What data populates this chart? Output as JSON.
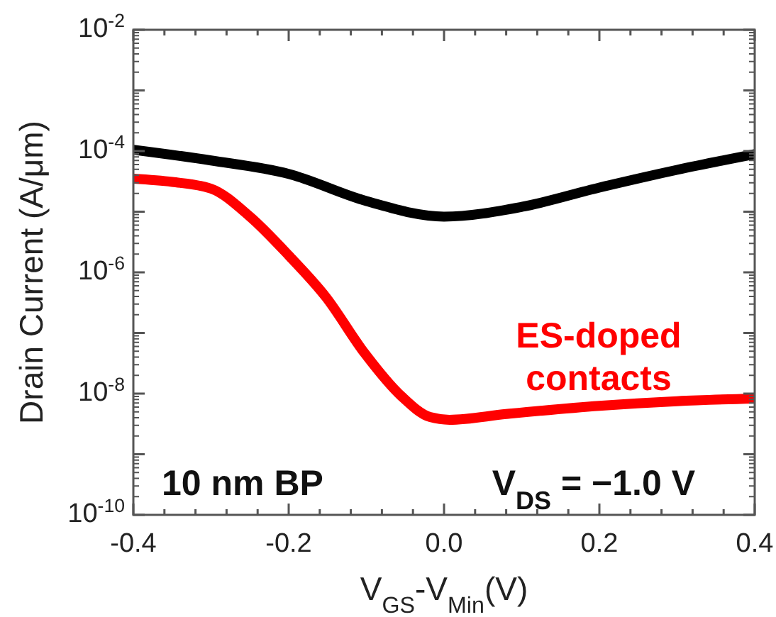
{
  "chart_data": {
    "type": "line",
    "xlabel": "V$_{GS}$-V$_{Min}$(V)",
    "ylabel": "Drain Current (A/μm)",
    "log": "y",
    "xlim": [
      -0.4,
      0.4
    ],
    "ylim": [
      1e-10,
      0.01
    ],
    "xticks": [
      -0.4,
      {
        "value": -0.36,
        "label": null
      },
      {
        "value": -0.32,
        "label": null
      },
      {
        "value": -0.28,
        "label": null
      },
      {
        "value": -0.24,
        "label": null
      },
      -0.2,
      {
        "value": -0.16,
        "label": null
      },
      {
        "value": -0.12,
        "label": null
      },
      {
        "value": -0.08,
        "label": null
      },
      {
        "value": -0.04,
        "label": null
      },
      {
        "value": 0,
        "label": "0.0"
      },
      {
        "value": 0.04,
        "label": null
      },
      {
        "value": 0.08,
        "label": null
      },
      {
        "value": 0.12,
        "label": null
      },
      {
        "value": 0.16,
        "label": null
      },
      0.2,
      {
        "value": 0.24,
        "label": null
      },
      {
        "value": 0.28,
        "label": null
      },
      {
        "value": 0.32,
        "label": null
      },
      {
        "value": 0.36,
        "label": null
      },
      0.4
    ],
    "yticks": [
      {
        "value": 1e-10,
        "label": "10$^{-10}$"
      },
      {
        "value": 1e-09,
        "label": null
      },
      {
        "value": 1e-08,
        "label": "10$^{-8}$"
      },
      {
        "value": 1e-07,
        "label": null
      },
      {
        "value": 1e-06,
        "label": "10$^{-6}$"
      },
      {
        "value": 1e-05,
        "label": null
      },
      {
        "value": 0.0001,
        "label": "10$^{-4}$"
      },
      {
        "value": 0.001,
        "label": null
      },
      {
        "value": 0.01,
        "label": "10$^{-2}$"
      }
    ],
    "grid": false,
    "line_style": "solid",
    "series": [
      {
        "color": "#000000",
        "x": [
          -0.4,
          -0.3,
          -0.2,
          -0.1,
          0,
          0.1,
          0.2,
          0.3,
          0.4
        ],
        "values": [
          0.000105,
          7e-05,
          4.2e-05,
          1.5e-05,
          8.3e-06,
          1.2e-05,
          2.5e-05,
          4.9e-05,
          8.9e-05
        ]
      },
      {
        "name": "ES-doped contacts",
        "color": "#ff0000",
        "x": [
          -0.4,
          -0.35,
          -0.3,
          -0.25,
          -0.2,
          -0.152,
          -0.102,
          -0.055,
          -0.018,
          0.007,
          0.08,
          0.2,
          0.3,
          0.4
        ],
        "values": [
          3.5e-05,
          3.1e-05,
          2.4e-05,
          8.3e-06,
          1.9e-06,
          3.9e-07,
          4.6e-08,
          9.1e-09,
          4.1e-09,
          3.7e-09,
          4.6e-09,
          6.3e-09,
          7.5e-09,
          8.3e-09
        ]
      }
    ],
    "annotations": [
      "10 nm BP",
      "V$_{DS}$ = −1.0 V"
    ]
  }
}
